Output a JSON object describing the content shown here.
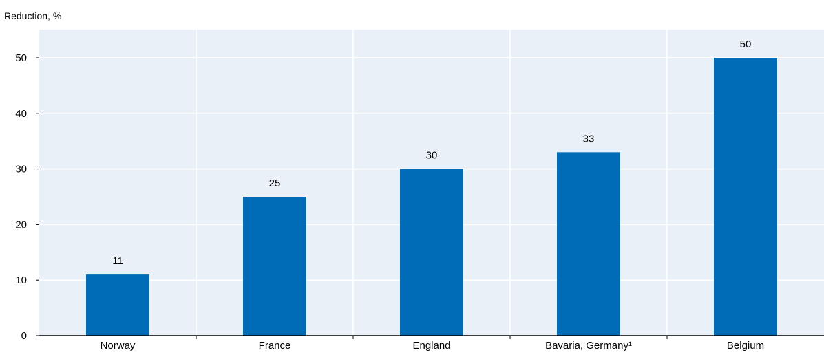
{
  "chart_data": {
    "type": "bar",
    "title": "",
    "ylabel": "Reduction, %",
    "xlabel": "",
    "categories": [
      "Norway",
      "France",
      "England",
      "Bavaria, Germany¹",
      "Belgium"
    ],
    "values": [
      11,
      25,
      30,
      33,
      50
    ],
    "data_labels": [
      "11",
      "25",
      "30",
      "33",
      "50"
    ],
    "ylim": [
      0,
      55
    ],
    "yticks": [
      0,
      10,
      20,
      30,
      40,
      50
    ],
    "ytick_labels": [
      "0",
      "10",
      "20",
      "30",
      "40",
      "50"
    ],
    "grid": true,
    "legend": "none",
    "colors": {
      "bar": "#006bb6",
      "grid": "#d9d9d9",
      "background": "#eaf0f7",
      "axis": "#000000"
    }
  }
}
